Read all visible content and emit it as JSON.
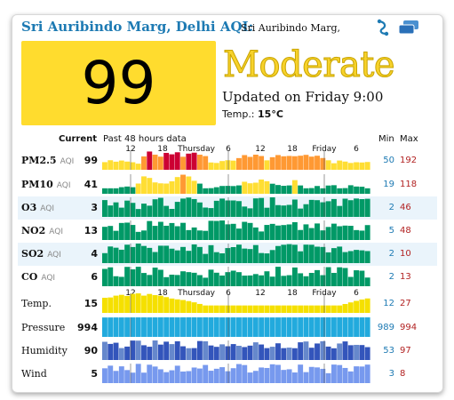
{
  "header": {
    "title": "Sri Auribindo Marg, Delhi AQI:",
    "subtitle": "Sri Auribindo Marg,",
    "share_icon": "share-icon",
    "menu_icon": "window-stack-icon"
  },
  "summary": {
    "aqi": "99",
    "level": "Moderate",
    "updated": "Updated on Friday 9:00",
    "temp_label": "Temp.:",
    "temp_value": "15°C"
  },
  "table": {
    "col_current": "Current",
    "col_past": "Past 48 hours data",
    "col_min": "Min",
    "col_max": "Max",
    "axis_top": [
      "12",
      "18",
      "Thursday",
      "6",
      "12",
      "18",
      "Friday",
      "6"
    ],
    "axis_bottom": [
      "12",
      "18",
      "Thursday",
      "6",
      "12",
      "18",
      "Friday",
      "6"
    ],
    "rows": [
      {
        "name": "PM2.5",
        "suffix": "AQI",
        "current": "99",
        "min": "50",
        "max": "192"
      },
      {
        "name": "PM10",
        "suffix": "AQI",
        "current": "41",
        "min": "19",
        "max": "118"
      },
      {
        "name": "O3",
        "suffix": "AQI",
        "current": "3",
        "min": "2",
        "max": "46"
      },
      {
        "name": "NO2",
        "suffix": "AQI",
        "current": "13",
        "min": "5",
        "max": "48"
      },
      {
        "name": "SO2",
        "suffix": "AQI",
        "current": "4",
        "min": "2",
        "max": "10"
      },
      {
        "name": "CO",
        "suffix": "AQI",
        "current": "6",
        "min": "2",
        "max": "13"
      },
      {
        "name": "Temp.",
        "suffix": "",
        "current": "15",
        "min": "12",
        "max": "27"
      },
      {
        "name": "Pressure",
        "suffix": "",
        "current": "994",
        "min": "989",
        "max": "994"
      },
      {
        "name": "Humidity",
        "suffix": "",
        "current": "90",
        "min": "53",
        "max": "97"
      },
      {
        "name": "Wind",
        "suffix": "",
        "current": "5",
        "min": "3",
        "max": "8"
      }
    ]
  },
  "colors": {
    "good": "#009966",
    "moderate": "#ffde33",
    "sensitive": "#ff9933",
    "unhealthy": "#cc0033",
    "temp": "#f5e000",
    "pressure": "#22aadd",
    "humidity_dark": "#3355bb",
    "humidity_light": "#6688cc",
    "wind": "#7799ee"
  }
}
